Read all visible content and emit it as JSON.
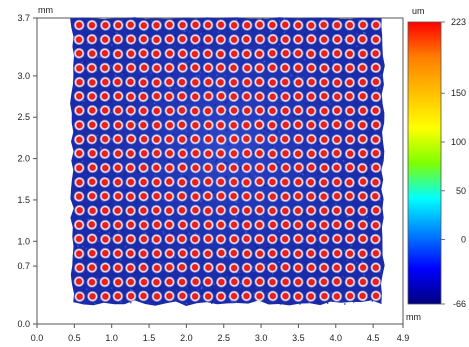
{
  "chart_data": {
    "type": "heatmap",
    "title": "",
    "x_unit": "mm",
    "y_unit": "mm",
    "colorbar_unit": "um",
    "xlim": [
      0.0,
      4.9
    ],
    "ylim": [
      0.0,
      3.7
    ],
    "x_ticks": [
      "0.0",
      "0.5",
      "1.0",
      "1.5",
      "2.0",
      "2.5",
      "3.0",
      "3.5",
      "4.0",
      "4.5",
      "4.9"
    ],
    "y_ticks": [
      "0.0",
      "0.7",
      "1.0",
      "1.5",
      "2.0",
      "2.5",
      "3.0",
      "3.7"
    ],
    "colorbar_ticks": [
      "223",
      "150",
      "100",
      "50",
      "0",
      "-66"
    ],
    "value_range": [
      -66,
      223
    ],
    "colormap": [
      "#00007f",
      "#0000ff",
      "#00ffff",
      "#7fff00",
      "#ffff00",
      "#ff7f00",
      "#ff0000"
    ],
    "grid": false,
    "pattern": {
      "description_values": {
        "x_extent": [
          0.48,
          4.62
        ],
        "y_extent": [
          0.25,
          3.7
        ],
        "columns": 24,
        "rows": 20,
        "background_height_um": -30,
        "bump_height_um": 200
      }
    }
  }
}
